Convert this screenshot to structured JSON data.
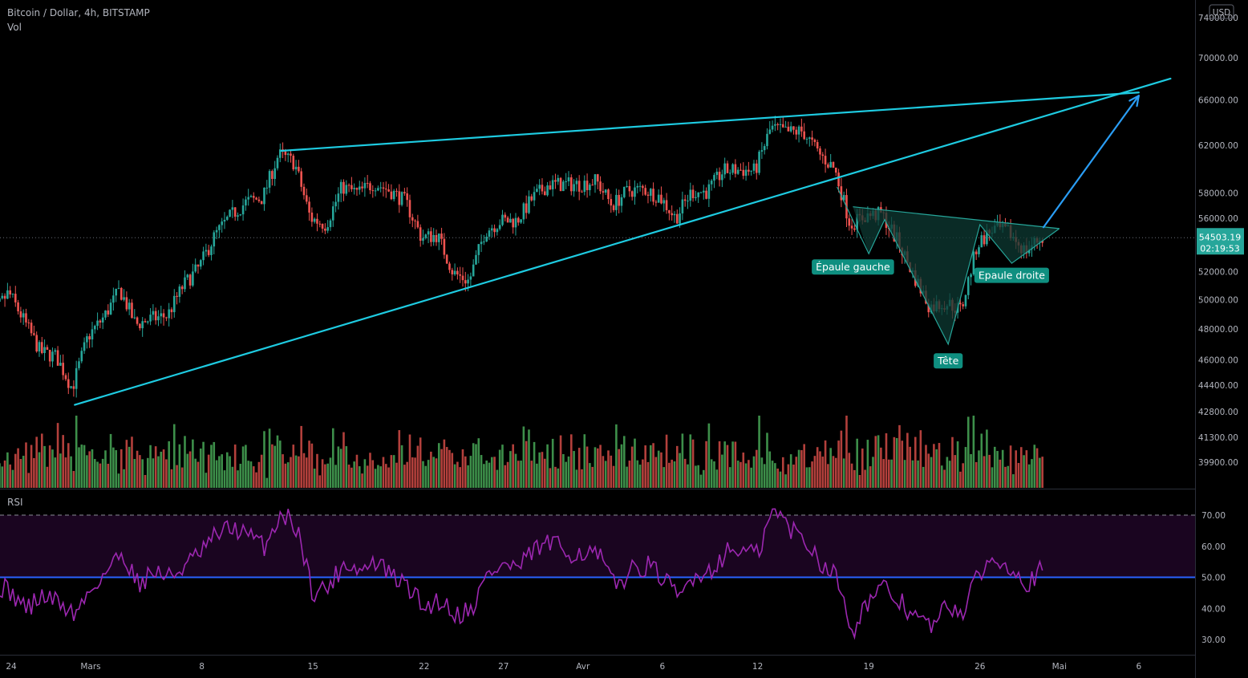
{
  "header": {
    "symbol": "Bitcoin / Dollar, 4h, BITSTAMP",
    "volume_label": "Vol",
    "currency_badge": "USD"
  },
  "rsi_panel": {
    "label": "RSI"
  },
  "price_badge": {
    "price": "54503.19",
    "countdown": "02:19:53"
  },
  "colors": {
    "background": "#000000",
    "up": "#26a69a",
    "down": "#ef5350",
    "vol_up": "#3d8f4a",
    "vol_down": "#b3403c",
    "trendline": "#1ecbe1",
    "arrow": "#2a9df4",
    "pattern_fill": "#0e3a33",
    "label_bg": "#0f8f80",
    "rsi_line": "#9c27b0",
    "rsi_band": "#1a0520",
    "rsi_midline": "#2962ff"
  },
  "chart_data": {
    "type": "candlestick",
    "timeframe": "4h",
    "price_axis": {
      "ticks": [
        39900,
        41300,
        42800,
        44400,
        46000,
        48000,
        50000,
        52000,
        54000,
        56000,
        58000,
        62000,
        66000,
        70000,
        74000
      ],
      "tick_labels": [
        "39900.00",
        "41300.00",
        "42800.00",
        "44400.00",
        "46000.00",
        "48000.00",
        "50000.00",
        "52000.00",
        "54000.00",
        "56000.00",
        "58000.00",
        "62000.00",
        "66000.00",
        "70000.00",
        "74000.00"
      ],
      "scale": "log",
      "range": [
        38800,
        74800
      ]
    },
    "rsi_axis": {
      "ticks": [
        30,
        40,
        50,
        60,
        70
      ],
      "tick_labels": [
        "30.00",
        "40.00",
        "50.00",
        "60.00",
        "70.00"
      ],
      "overbought": 70,
      "midline": 50
    },
    "time_axis": {
      "labels": [
        "24",
        "Mars",
        "8",
        "15",
        "22",
        "27",
        "Avr",
        "6",
        "12",
        "19",
        "26",
        "Mai",
        "6"
      ],
      "dates": [
        "2021-02-24",
        "2021-03-01",
        "2021-03-08",
        "2021-03-15",
        "2021-03-22",
        "2021-03-27",
        "2021-04-01",
        "2021-04-06",
        "2021-04-12",
        "2021-04-19",
        "2021-04-26",
        "2021-05-01",
        "2021-05-06"
      ]
    },
    "current_price": 54503.19,
    "price_path": [
      [
        "2021-02-22",
        51000
      ],
      [
        "2021-02-23",
        49000
      ],
      [
        "2021-02-24",
        50500
      ],
      [
        "2021-02-25",
        48500
      ],
      [
        "2021-02-26",
        46500
      ],
      [
        "2021-02-27",
        46200
      ],
      [
        "2021-02-28",
        44200
      ],
      [
        "2021-03-01",
        47500
      ],
      [
        "2021-03-02",
        48800
      ],
      [
        "2021-03-03",
        50700
      ],
      [
        "2021-03-04",
        48300
      ],
      [
        "2021-03-05",
        48700
      ],
      [
        "2021-03-06",
        48900
      ],
      [
        "2021-03-07",
        51000
      ],
      [
        "2021-03-08",
        52300
      ],
      [
        "2021-03-09",
        54700
      ],
      [
        "2021-03-10",
        56200
      ],
      [
        "2021-03-11",
        57300
      ],
      [
        "2021-03-12",
        57600
      ],
      [
        "2021-03-13",
        61200
      ],
      [
        "2021-03-14",
        60500
      ],
      [
        "2021-03-15",
        56000
      ],
      [
        "2021-03-16",
        55500
      ],
      [
        "2021-03-17",
        58500
      ],
      [
        "2021-03-18",
        58000
      ],
      [
        "2021-03-19",
        58800
      ],
      [
        "2021-03-20",
        58200
      ],
      [
        "2021-03-21",
        57300
      ],
      [
        "2021-03-22",
        54500
      ],
      [
        "2021-03-23",
        54700
      ],
      [
        "2021-03-24",
        51900
      ],
      [
        "2021-03-25",
        51300
      ],
      [
        "2021-03-26",
        55000
      ],
      [
        "2021-03-27",
        55800
      ],
      [
        "2021-03-28",
        55800
      ],
      [
        "2021-03-29",
        57600
      ],
      [
        "2021-03-30",
        58700
      ],
      [
        "2021-03-31",
        58700
      ],
      [
        "2021-04-01",
        58700
      ],
      [
        "2021-04-02",
        59000
      ],
      [
        "2021-04-03",
        57000
      ],
      [
        "2021-04-04",
        58200
      ],
      [
        "2021-04-05",
        58300
      ],
      [
        "2021-04-06",
        57700
      ],
      [
        "2021-04-07",
        56000
      ],
      [
        "2021-04-08",
        58100
      ],
      [
        "2021-04-09",
        58100
      ],
      [
        "2021-04-10",
        59800
      ],
      [
        "2021-04-11",
        59900
      ],
      [
        "2021-04-12",
        59800
      ],
      [
        "2021-04-13",
        63500
      ],
      [
        "2021-04-14",
        63100
      ],
      [
        "2021-04-15",
        63200
      ],
      [
        "2021-04-16",
        61300
      ],
      [
        "2021-04-17",
        60000
      ],
      [
        "2021-04-18",
        55500
      ],
      [
        "2021-04-19",
        56200
      ],
      [
        "2021-04-20",
        56300
      ],
      [
        "2021-04-21",
        54200
      ],
      [
        "2021-04-22",
        51700
      ],
      [
        "2021-04-23",
        49500
      ],
      [
        "2021-04-24",
        49800
      ],
      [
        "2021-04-25",
        49300
      ],
      [
        "2021-04-26",
        54000
      ],
      [
        "2021-04-27",
        55200
      ],
      [
        "2021-04-28",
        54900
      ],
      [
        "2021-04-29",
        53500
      ],
      [
        "2021-04-30",
        54503
      ]
    ],
    "rsi_path": [
      [
        "2021-02-22",
        36
      ],
      [
        "2021-02-23",
        48
      ],
      [
        "2021-02-24",
        45
      ],
      [
        "2021-02-25",
        40
      ],
      [
        "2021-02-26",
        44
      ],
      [
        "2021-02-27",
        42
      ],
      [
        "2021-02-28",
        38
      ],
      [
        "2021-03-01",
        46
      ],
      [
        "2021-03-02",
        52
      ],
      [
        "2021-03-03",
        58
      ],
      [
        "2021-03-04",
        48
      ],
      [
        "2021-03-05",
        52
      ],
      [
        "2021-03-06",
        50
      ],
      [
        "2021-03-07",
        54
      ],
      [
        "2021-03-08",
        58
      ],
      [
        "2021-03-09",
        64
      ],
      [
        "2021-03-10",
        66
      ],
      [
        "2021-03-11",
        63
      ],
      [
        "2021-03-12",
        60
      ],
      [
        "2021-03-13",
        71
      ],
      [
        "2021-03-14",
        66
      ],
      [
        "2021-03-15",
        45
      ],
      [
        "2021-03-16",
        47
      ],
      [
        "2021-03-17",
        55
      ],
      [
        "2021-03-18",
        52
      ],
      [
        "2021-03-19",
        55
      ],
      [
        "2021-03-20",
        50
      ],
      [
        "2021-03-21",
        47
      ],
      [
        "2021-03-22",
        40
      ],
      [
        "2021-03-23",
        43
      ],
      [
        "2021-03-24",
        38
      ],
      [
        "2021-03-25",
        40
      ],
      [
        "2021-03-26",
        51
      ],
      [
        "2021-03-27",
        54
      ],
      [
        "2021-03-28",
        53
      ],
      [
        "2021-03-29",
        59
      ],
      [
        "2021-03-30",
        61
      ],
      [
        "2021-03-31",
        58
      ],
      [
        "2021-04-01",
        58
      ],
      [
        "2021-04-02",
        57
      ],
      [
        "2021-04-03",
        47
      ],
      [
        "2021-04-04",
        52
      ],
      [
        "2021-04-05",
        54
      ],
      [
        "2021-04-06",
        50
      ],
      [
        "2021-04-07",
        43
      ],
      [
        "2021-04-08",
        51
      ],
      [
        "2021-04-09",
        52
      ],
      [
        "2021-04-10",
        58
      ],
      [
        "2021-04-11",
        59
      ],
      [
        "2021-04-12",
        57
      ],
      [
        "2021-04-13",
        72
      ],
      [
        "2021-04-14",
        66
      ],
      [
        "2021-04-15",
        62
      ],
      [
        "2021-04-16",
        55
      ],
      [
        "2021-04-17",
        50
      ],
      [
        "2021-04-18",
        33
      ],
      [
        "2021-04-19",
        43
      ],
      [
        "2021-04-20",
        46
      ],
      [
        "2021-04-21",
        42
      ],
      [
        "2021-04-22",
        37
      ],
      [
        "2021-04-23",
        34
      ],
      [
        "2021-04-24",
        41
      ],
      [
        "2021-04-25",
        39
      ],
      [
        "2021-04-26",
        52
      ],
      [
        "2021-04-27",
        56
      ],
      [
        "2021-04-28",
        54
      ],
      [
        "2021-04-29",
        48
      ],
      [
        "2021-04-30",
        53
      ]
    ],
    "trendlines": [
      {
        "name": "upper-resistance",
        "from": [
          "2021-03-13",
          61500
        ],
        "to": [
          "2021-05-06",
          66700
        ]
      },
      {
        "name": "lower-support",
        "from": [
          "2021-02-28",
          43200
        ],
        "to": [
          "2021-05-08",
          68000
        ]
      }
    ],
    "projection_arrow": {
      "from": [
        "2021-04-30",
        55300
      ],
      "to": [
        "2021-05-06",
        66400
      ]
    },
    "pattern": {
      "type": "inverse head and shoulders",
      "labels": [
        {
          "text": "Épaule gauche",
          "date": "2021-04-18",
          "price": 52300
        },
        {
          "text": "Tête",
          "date": "2021-04-24",
          "price": 45900
        },
        {
          "text": "Epaule droite",
          "date": "2021-04-28",
          "price": 51700
        }
      ],
      "neckline": {
        "from": [
          "2021-04-18",
          56900
        ],
        "to": [
          "2021-05-01",
          55200
        ]
      },
      "path": [
        [
          "2021-04-17",
          58500
        ],
        [
          "2021-04-19",
          53300
        ],
        [
          "2021-04-20",
          55900
        ],
        [
          "2021-04-24",
          47000
        ],
        [
          "2021-04-26",
          55500
        ],
        [
          "2021-04-28",
          52600
        ],
        [
          "2021-05-01",
          55200
        ]
      ]
    }
  }
}
